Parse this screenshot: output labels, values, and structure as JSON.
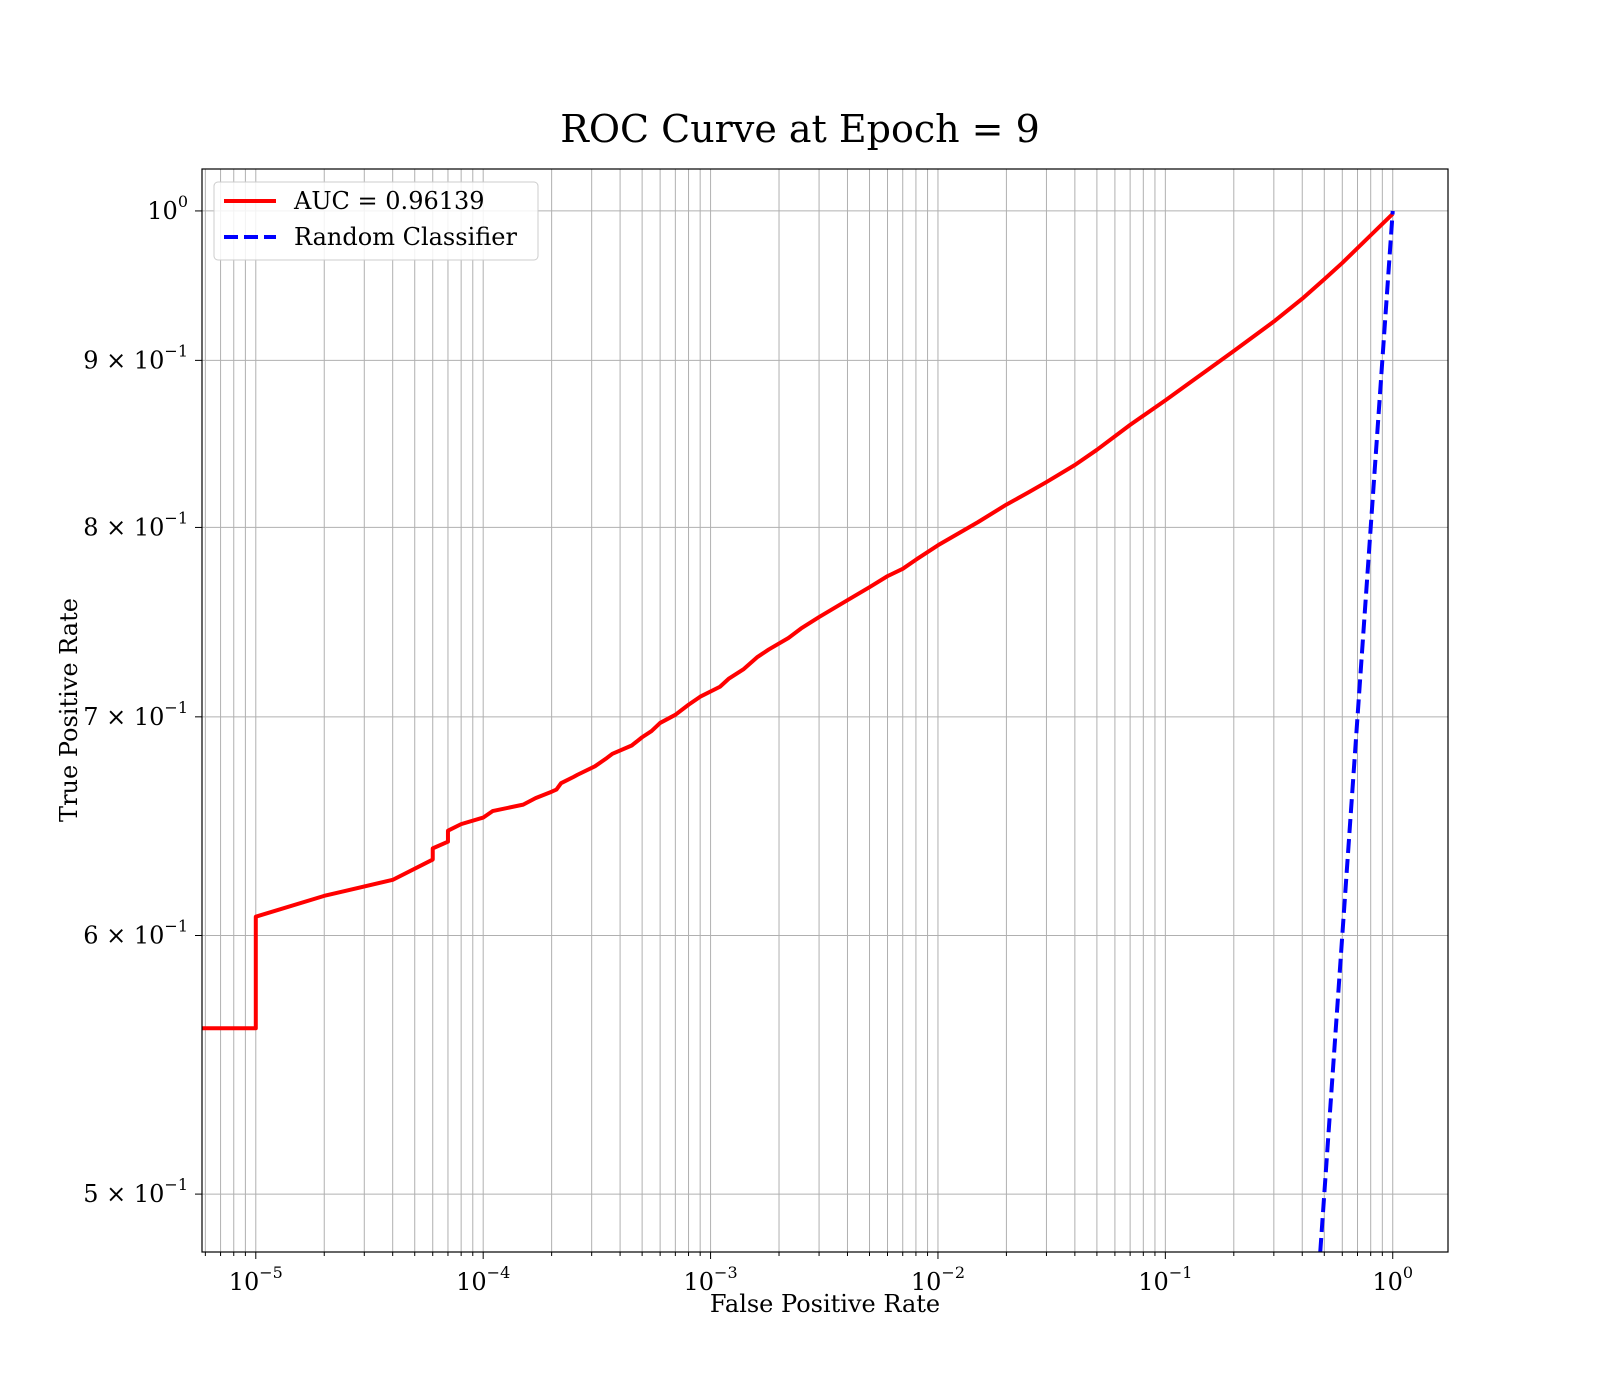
{
  "chart_data": {
    "type": "line",
    "title": "ROC Curve at Epoch = 9",
    "xlabel": "False Positive Rate",
    "ylabel": "True Positive Rate",
    "xscale": "log",
    "yscale": "log",
    "xlim": [
      5.8e-06,
      1.75
    ],
    "ylim": [
      0.48,
      1.03
    ],
    "grid": true,
    "grid_x": "major-and-minor",
    "grid_y": "major-and-minor",
    "legend_position": "top-left",
    "x_ticks": [
      {
        "value": 1e-05,
        "base": "10",
        "exp": "−5"
      },
      {
        "value": 0.0001,
        "base": "10",
        "exp": "−4"
      },
      {
        "value": 0.001,
        "base": "10",
        "exp": "−3"
      },
      {
        "value": 0.01,
        "base": "10",
        "exp": "−2"
      },
      {
        "value": 0.1,
        "base": "10",
        "exp": "−1"
      },
      {
        "value": 1,
        "base": "10",
        "exp": "0"
      }
    ],
    "y_ticks": [
      {
        "value": 0.5,
        "base": "5 × 10",
        "exp": "−1"
      },
      {
        "value": 0.6,
        "base": "6 × 10",
        "exp": "−1"
      },
      {
        "value": 0.7,
        "base": "7 × 10",
        "exp": "−1"
      },
      {
        "value": 0.8,
        "base": "8 × 10",
        "exp": "−1"
      },
      {
        "value": 0.9,
        "base": "9 × 10",
        "exp": "−1"
      },
      {
        "value": 1.0,
        "base": "10",
        "exp": "0"
      }
    ],
    "series": [
      {
        "name": "AUC = 0.96139",
        "color": "#ff0000",
        "style": "solid",
        "x": [
          5.8e-06,
          1e-05,
          1e-05,
          2e-05,
          4e-05,
          6e-05,
          6e-05,
          7e-05,
          7e-05,
          8e-05,
          0.0001,
          0.00011,
          0.00015,
          0.00017,
          0.0002,
          0.00021,
          0.00022,
          0.00025,
          0.00026,
          0.00031,
          0.00035,
          0.00037,
          0.00045,
          0.0005,
          0.00055,
          0.0006,
          0.0007,
          0.0008,
          0.0009,
          0.0011,
          0.0012,
          0.0014,
          0.0016,
          0.0018,
          0.0022,
          0.0025,
          0.003,
          0.004,
          0.005,
          0.006,
          0.007,
          0.008,
          0.01,
          0.015,
          0.02,
          0.025,
          0.03,
          0.04,
          0.05,
          0.07,
          0.1,
          0.15,
          0.2,
          0.3,
          0.4,
          0.5,
          0.6,
          0.8,
          1.0
        ],
        "y": [
          0.562,
          0.562,
          0.608,
          0.617,
          0.624,
          0.633,
          0.638,
          0.641,
          0.646,
          0.649,
          0.652,
          0.655,
          0.658,
          0.661,
          0.664,
          0.665,
          0.668,
          0.671,
          0.672,
          0.676,
          0.68,
          0.682,
          0.686,
          0.69,
          0.693,
          0.697,
          0.701,
          0.706,
          0.71,
          0.715,
          0.719,
          0.724,
          0.73,
          0.734,
          0.74,
          0.745,
          0.751,
          0.76,
          0.767,
          0.773,
          0.777,
          0.782,
          0.79,
          0.803,
          0.813,
          0.82,
          0.826,
          0.836,
          0.845,
          0.86,
          0.875,
          0.893,
          0.906,
          0.925,
          0.94,
          0.953,
          0.964,
          0.983,
          0.998
        ]
      },
      {
        "name": "Random Classifier",
        "color": "#0000ff",
        "style": "dashed",
        "x": [
          0.48,
          1.0
        ],
        "y": [
          0.48,
          1.0
        ]
      }
    ]
  }
}
